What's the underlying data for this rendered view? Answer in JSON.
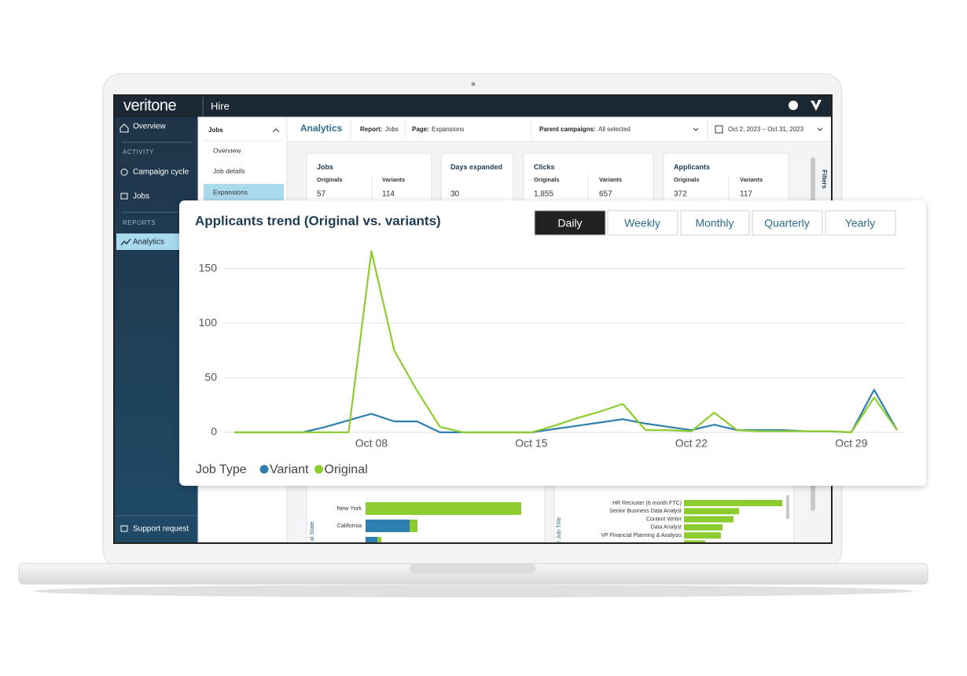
{
  "app": {
    "brand": "veritone",
    "product": "Hire"
  },
  "sidebar": {
    "top": "Overview",
    "activity": {
      "heading": "ACTIVITY",
      "items": [
        "Campaign cycle",
        "Jobs"
      ]
    },
    "reports": {
      "heading": "REPORTS",
      "items": [
        "Analytics"
      ]
    },
    "footer": "Support request"
  },
  "subnav": {
    "heading": "Jobs",
    "items": [
      "Overview",
      "Job details",
      "Expansions"
    ]
  },
  "toolbar": {
    "title": "Analytics",
    "report_label": "Report:",
    "report": "Jobs",
    "page_label": "Page:",
    "page": "Expansions",
    "campaigns_label": "Parent campaigns:",
    "campaigns": "All selected",
    "date_range": "Oct 2, 2023 – Oct 31, 2023",
    "filters": "Filters"
  },
  "kpis": [
    {
      "title": "Jobs",
      "originals_label": "Originals",
      "originals": 57,
      "variants_label": "Variants",
      "variants": 114
    },
    {
      "title": "Days expanded",
      "value": 30
    },
    {
      "title": "Clicks",
      "originals_label": "Originals",
      "originals": "1,855",
      "variants_label": "Variants",
      "variants": 657
    },
    {
      "title": "Applicants",
      "originals_label": "Originals",
      "originals": 372,
      "variants_label": "Variants",
      "variants": 117
    }
  ],
  "chart_data": {
    "type": "line",
    "title": "Applicants trend (Original vs. variants)",
    "buttons": [
      "Daily",
      "Weekly",
      "Monthly",
      "Quarterly",
      "Yearly"
    ],
    "categories": [
      null,
      null,
      null,
      null,
      null,
      null,
      "Oct 08",
      null,
      null,
      null,
      null,
      null,
      null,
      "Oct 15",
      null,
      null,
      null,
      null,
      null,
      null,
      "Oct 22",
      null,
      null,
      null,
      null,
      null,
      null,
      "Oct 29",
      null,
      null
    ],
    "legend_title": "Job Type",
    "series": [
      {
        "name": "Variant",
        "color": "#2e7fb0",
        "values": [
          0,
          0,
          0,
          0,
          5,
          11,
          17,
          10,
          10,
          0,
          0,
          0,
          0,
          0,
          3,
          6,
          9,
          12,
          8,
          5,
          2,
          7,
          2,
          2,
          2,
          1,
          1,
          0,
          39,
          2
        ]
      },
      {
        "name": "Original",
        "color": "#8dcc2f",
        "values": [
          0,
          0,
          0,
          0,
          0,
          0,
          166,
          75,
          38,
          5,
          0,
          0,
          0,
          0,
          6,
          13,
          19,
          26,
          2,
          2,
          1,
          18,
          2,
          1,
          1,
          1,
          1,
          0,
          32,
          2
        ]
      }
    ],
    "ylim": [
      0,
      170
    ],
    "yticks": [
      0,
      50,
      100,
      150
    ],
    "grid": true
  },
  "state_chart": {
    "axis_label": "al State",
    "categories": [
      "New York",
      "California",
      null
    ],
    "series": [
      {
        "color": "#2e7fb0",
        "values": [
          0,
          56,
          15
        ]
      },
      {
        "color": "#8dcc2f",
        "values": [
          198,
          10,
          5
        ]
      }
    ]
  },
  "title_chart": {
    "axis_label": "al Job Title",
    "categories": [
      "HR Recruiter (6 month FTC)",
      "Senior Business Data Analyst",
      "Content Writer",
      "Data Analyst",
      "VP Financial Planning & Analysis",
      null
    ],
    "values": [
      125,
      70,
      63,
      49,
      47,
      27
    ],
    "color": "#8dcc2f"
  }
}
